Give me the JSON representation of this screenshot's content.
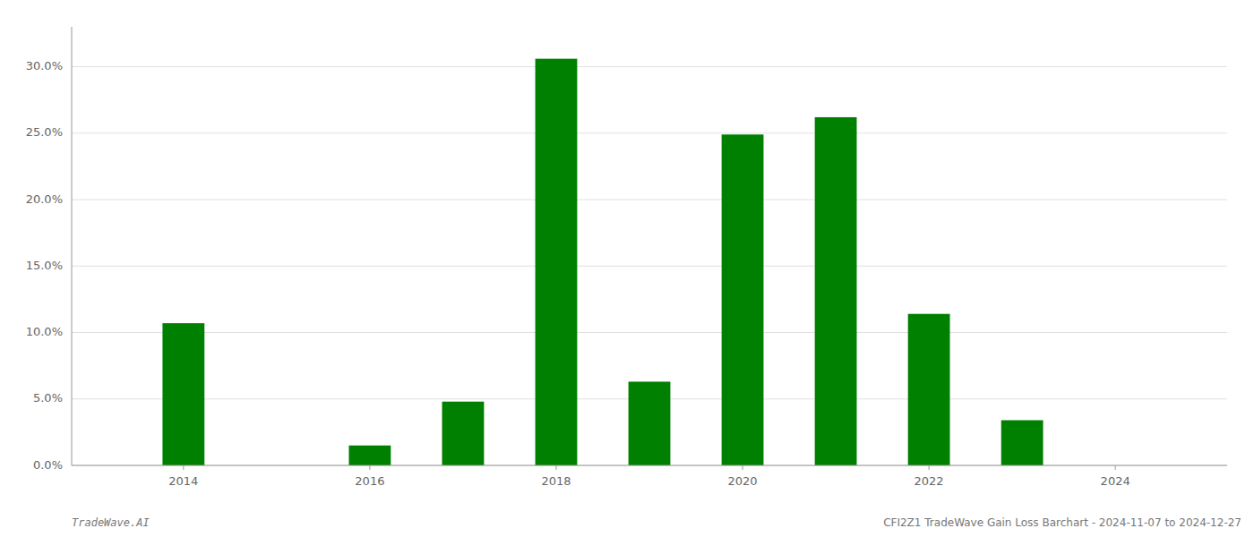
{
  "chart_data": {
    "type": "bar",
    "x": [
      2014,
      2015,
      2016,
      2017,
      2018,
      2019,
      2020,
      2021,
      2022,
      2023,
      2024
    ],
    "values": [
      0.107,
      0.0,
      0.015,
      0.048,
      0.306,
      0.063,
      0.249,
      0.262,
      0.114,
      0.034,
      0.0
    ],
    "color": "#008000",
    "xlim": [
      2012.8,
      2025.2
    ],
    "xticks": [
      2014,
      2016,
      2018,
      2020,
      2022,
      2024
    ],
    "ylim": [
      0,
      0.33
    ],
    "yticks": [
      {
        "value": 0,
        "label": "0.0%"
      },
      {
        "value": 0.05,
        "label": "5.0%"
      },
      {
        "value": 0.1,
        "label": "10.0%"
      },
      {
        "value": 0.15,
        "label": "15.0%"
      },
      {
        "value": 0.2,
        "label": "20.0%"
      },
      {
        "value": 0.25,
        "label": "25.0%"
      },
      {
        "value": 0.3,
        "label": "30.0%"
      }
    ],
    "grid": true,
    "annotations": [
      "TradeWave.AI",
      "CFI2Z1 TradeWave Gain Loss Barchart - 2024-11-07 to 2024-12-27"
    ]
  }
}
